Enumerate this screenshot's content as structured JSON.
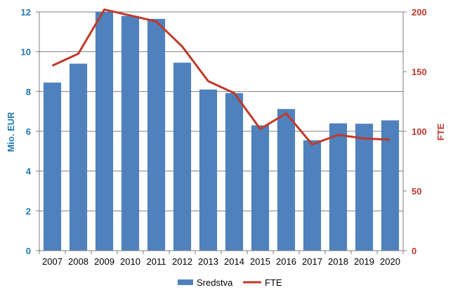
{
  "chart_data": {
    "type": "bar",
    "categories": [
      "2007",
      "2008",
      "2009",
      "2010",
      "2011",
      "2012",
      "2013",
      "2014",
      "2015",
      "2016",
      "2017",
      "2018",
      "2019",
      "2020"
    ],
    "series": [
      {
        "name": "Sredstva",
        "type": "bar",
        "axis": "left",
        "color": "#4f81bd",
        "values": [
          8.45,
          9.4,
          12.0,
          11.8,
          11.65,
          9.45,
          8.1,
          7.92,
          6.3,
          7.12,
          5.55,
          6.4,
          6.38,
          6.55
        ]
      },
      {
        "name": "FTE",
        "type": "line",
        "axis": "right",
        "color": "#c0392b",
        "values": [
          155,
          165,
          202,
          197,
          192,
          171,
          142,
          132,
          102,
          115,
          89,
          97,
          94,
          93
        ]
      }
    ],
    "ylabel_left": "Mio. EUR",
    "ylabel_right": "FTE",
    "ylim_left": [
      0,
      12
    ],
    "ylim_right": [
      0,
      200
    ],
    "yticks_left": [
      "0",
      "2",
      "4",
      "6",
      "8",
      "10",
      "12"
    ],
    "yticks_right": [
      "0",
      "50",
      "100",
      "150",
      "200"
    ],
    "grid": true,
    "legend_position": "bottom",
    "colors": {
      "left_axis": "#1f77b4",
      "right_axis": "#c0392b"
    }
  }
}
